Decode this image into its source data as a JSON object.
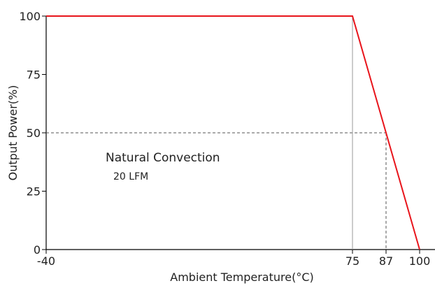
{
  "chart_data": {
    "type": "line",
    "title": "",
    "xlabel": "Ambient Temperature(°C)",
    "ylabel": "Output Power(%)",
    "xlim": [
      -40,
      100
    ],
    "ylim": [
      0,
      100
    ],
    "x_ticks": [
      "-40",
      "75",
      "87",
      "100"
    ],
    "y_ticks": [
      "0",
      "25",
      "50",
      "75",
      "100"
    ],
    "grid": false,
    "series": [
      {
        "x": [
          -40,
          75,
          100
        ],
        "y": [
          100,
          100,
          0
        ],
        "color": "#e8141b"
      }
    ],
    "reference_lines": [
      {
        "style": "dashed",
        "points": [
          {
            "x": -40,
            "y": 50
          },
          {
            "x": 87,
            "y": 50
          }
        ]
      },
      {
        "style": "dashed",
        "points": [
          {
            "x": 87,
            "y": 50
          },
          {
            "x": 87,
            "y": 0
          }
        ]
      },
      {
        "style": "solid",
        "points": [
          {
            "x": 75,
            "y": 100
          },
          {
            "x": 75,
            "y": 0
          }
        ]
      }
    ],
    "annotations": [
      "Natural Convection",
      "20 LFM"
    ]
  }
}
